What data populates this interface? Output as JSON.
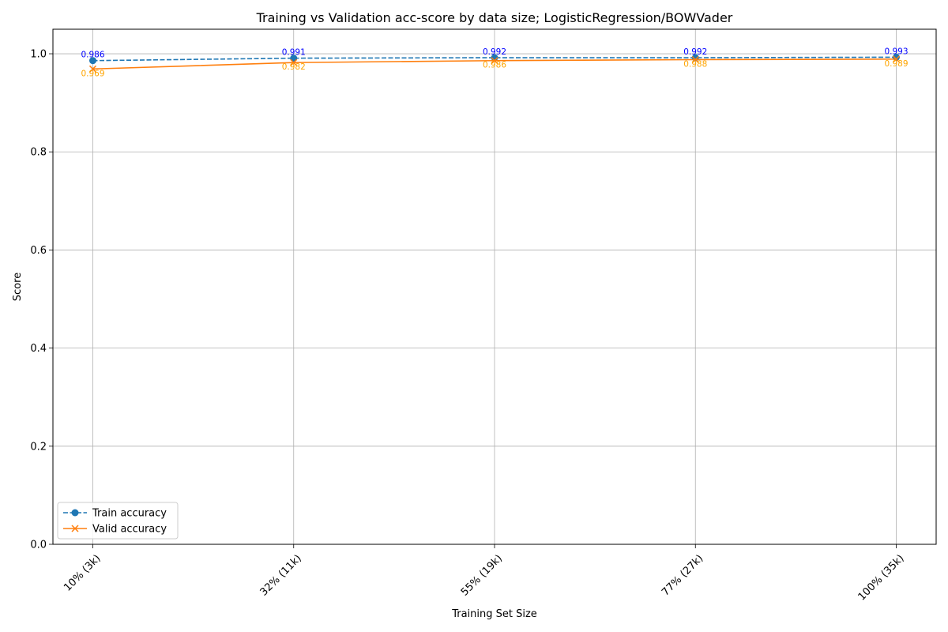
{
  "chart_data": {
    "type": "line",
    "title": "Training vs Validation acc-score by data size; LogisticRegression/BOWVader",
    "xlabel": "Training Set Size",
    "ylabel": "Score",
    "categories": [
      "10% (3k)",
      "32% (11k)",
      "55% (19k)",
      "77% (27k)",
      "100% (35k)"
    ],
    "ylim": [
      0,
      1.05
    ],
    "yticks": [
      "0.0",
      "0.2",
      "0.4",
      "0.6",
      "0.8",
      "1.0"
    ],
    "grid": true,
    "legend_position": "lower-left",
    "series": [
      {
        "name": "Train accuracy",
        "values": [
          0.986,
          0.991,
          0.992,
          0.992,
          0.993
        ],
        "labels": [
          "0.986",
          "0.991",
          "0.992",
          "0.992",
          "0.993"
        ],
        "color": "#1f77b4",
        "label_color": "#0000ff",
        "marker": "circle",
        "linestyle": "dashed"
      },
      {
        "name": "Valid accuracy",
        "values": [
          0.969,
          0.982,
          0.986,
          0.988,
          0.989
        ],
        "labels": [
          "0.969",
          "0.982",
          "0.986",
          "0.988",
          "0.989"
        ],
        "color": "#ff7f0e",
        "label_color": "#ffa500",
        "marker": "x",
        "linestyle": "solid"
      }
    ]
  }
}
